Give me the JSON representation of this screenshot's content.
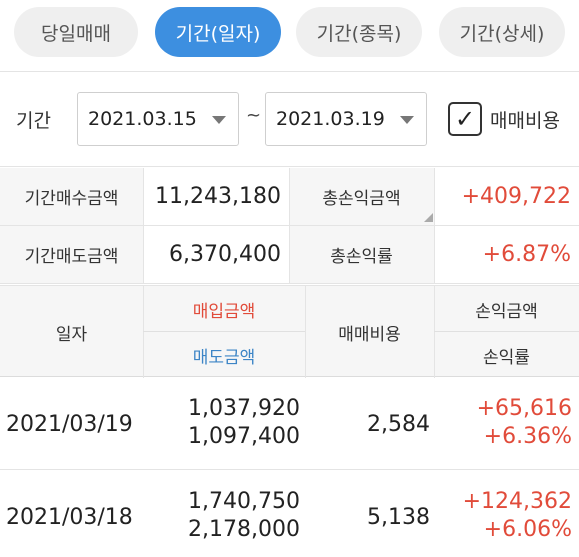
{
  "tabs": [
    {
      "label": "당일매매",
      "active": false
    },
    {
      "label": "기간(일자)",
      "active": true
    },
    {
      "label": "기간(종목)",
      "active": false
    },
    {
      "label": "기간(상세)",
      "active": false
    }
  ],
  "filter": {
    "period_label": "기간",
    "start_date": "2021.03.15",
    "separator": "~",
    "end_date": "2021.03.19",
    "fee_checkbox_label": "매매비용",
    "fee_checked": true
  },
  "summary": {
    "buy_total_label": "기간매수금액",
    "buy_total": "11,243,180",
    "sell_total_label": "기간매도금액",
    "sell_total": "6,370,400",
    "pl_total_label": "총손익금액",
    "pl_total": "+409,722",
    "pl_rate_label": "총손익률",
    "pl_rate": "+6.87%"
  },
  "table": {
    "col_date": "일자",
    "col_buy": "매입금액",
    "col_sell": "매도금액",
    "col_fee": "매매비용",
    "col_pl_amount": "손익금액",
    "col_pl_rate": "손익률",
    "rows": [
      {
        "date": "2021/03/19",
        "buy": "1,037,920",
        "sell": "1,097,400",
        "fee": "2,584",
        "pl_amount": "+65,616",
        "pl_rate": "+6.36%"
      },
      {
        "date": "2021/03/18",
        "buy": "1,740,750",
        "sell": "2,178,000",
        "fee": "5,138",
        "pl_amount": "+124,362",
        "pl_rate": "+6.06%"
      }
    ]
  },
  "colors": {
    "accent": "#3d8fe0",
    "profit": "#e14b3a",
    "sell": "#3d85c6"
  }
}
